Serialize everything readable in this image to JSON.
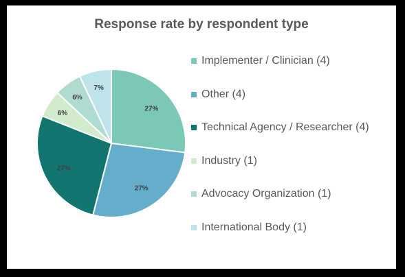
{
  "chart_data": {
    "type": "pie",
    "title": "Response rate by respondent type",
    "legend_position": "right",
    "slices": [
      {
        "name": "Implementer / Clinician (4)",
        "value": 27,
        "label": "27%",
        "color": "#7cc8b6"
      },
      {
        "name": "Other (4)",
        "value": 27,
        "label": "27%",
        "color": "#65aecb"
      },
      {
        "name": "Technical Agency / Researcher (4)",
        "value": 27,
        "label": "27%",
        "color": "#137570"
      },
      {
        "name": "Industry (1)",
        "value": 6,
        "label": "6%",
        "color": "#d2ebcd"
      },
      {
        "name": "Advocacy Organization (1)",
        "value": 6,
        "label": "6%",
        "color": "#b0dbd1"
      },
      {
        "name": "International Body (1)",
        "value": 7,
        "label": "7%",
        "color": "#bfe3ea"
      }
    ]
  }
}
